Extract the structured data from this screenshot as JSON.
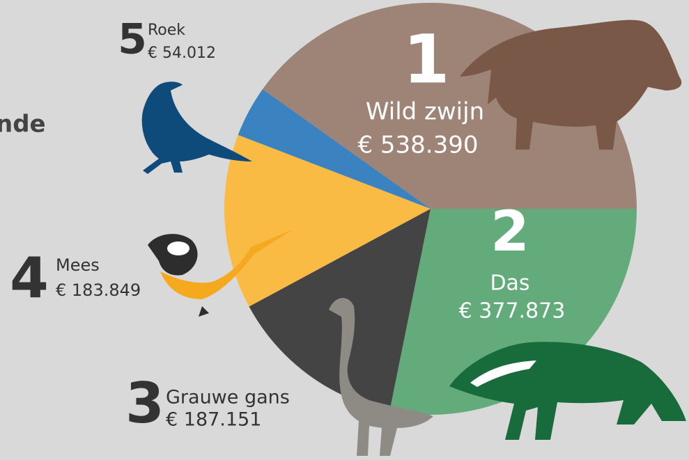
{
  "chart_data": {
    "type": "pie",
    "title": "nde",
    "categories": [
      "Wild zwijn",
      "Das",
      "Grauwe gans",
      "Mees",
      "Roek"
    ],
    "ranks": [
      1,
      2,
      3,
      4,
      5
    ],
    "values": [
      538390,
      377873,
      187151,
      183849,
      54012
    ],
    "value_labels": [
      "€ 538.390",
      "€ 377.873",
      "€ 187.151",
      "€ 183.849",
      "€ 54.012"
    ],
    "colors": [
      "#9e8477",
      "#63ab7b",
      "#444444",
      "#f9bb43",
      "#3b83c0"
    ]
  }
}
